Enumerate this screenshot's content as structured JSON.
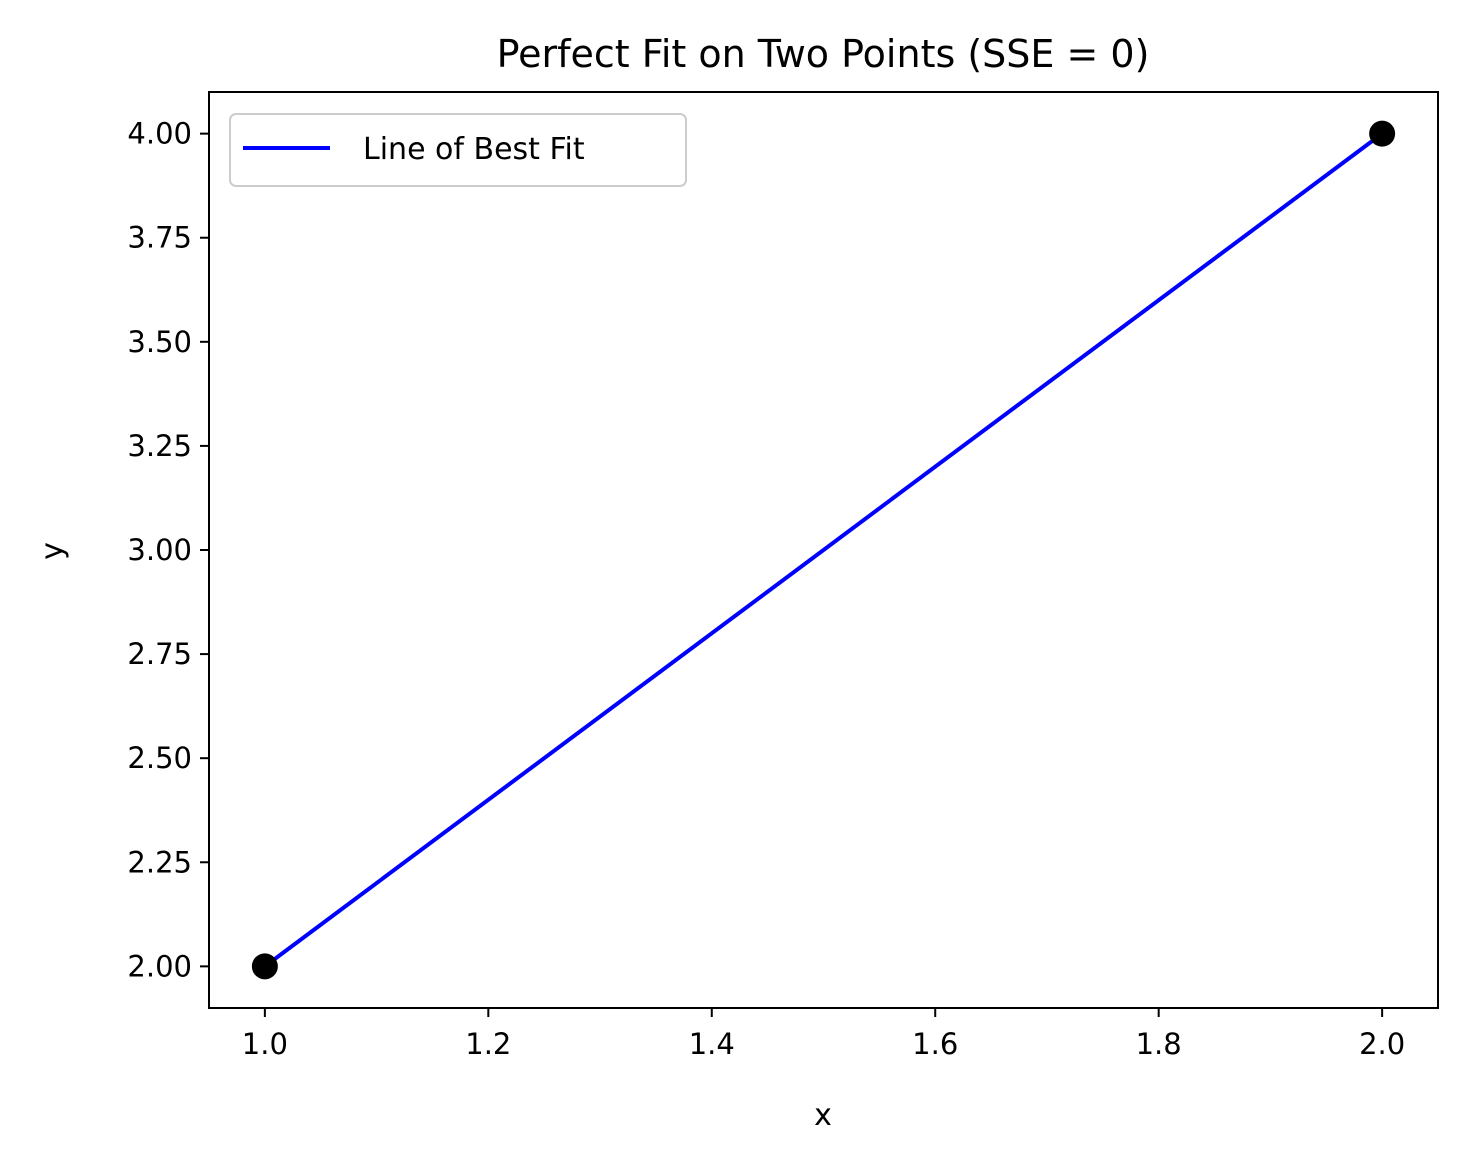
{
  "chart_data": {
    "type": "line",
    "title": "Perfect Fit on Two Points (SSE = 0)",
    "xlabel": "x",
    "ylabel": "y",
    "xlim": [
      0.95,
      2.05
    ],
    "ylim": [
      1.9,
      4.1
    ],
    "xticks": [
      1.0,
      1.2,
      1.4,
      1.6,
      1.8,
      2.0
    ],
    "xtick_labels": [
      "1.0",
      "1.2",
      "1.4",
      "1.6",
      "1.8",
      "2.0"
    ],
    "yticks": [
      2.0,
      2.25,
      2.5,
      2.75,
      3.0,
      3.25,
      3.5,
      3.75,
      4.0
    ],
    "ytick_labels": [
      "2.00",
      "2.25",
      "2.50",
      "2.75",
      "3.00",
      "3.25",
      "3.50",
      "3.75",
      "4.00"
    ],
    "grid": false,
    "legend_position": "upper-left",
    "series": [
      {
        "name": "Line of Best Fit",
        "kind": "line",
        "color": "#0000ff",
        "x": [
          1.0,
          2.0
        ],
        "y": [
          2.0,
          4.0
        ]
      },
      {
        "kind": "scatter",
        "color": "#000000",
        "x": [
          1.0,
          2.0
        ],
        "y": [
          2.0,
          4.0
        ]
      }
    ]
  }
}
